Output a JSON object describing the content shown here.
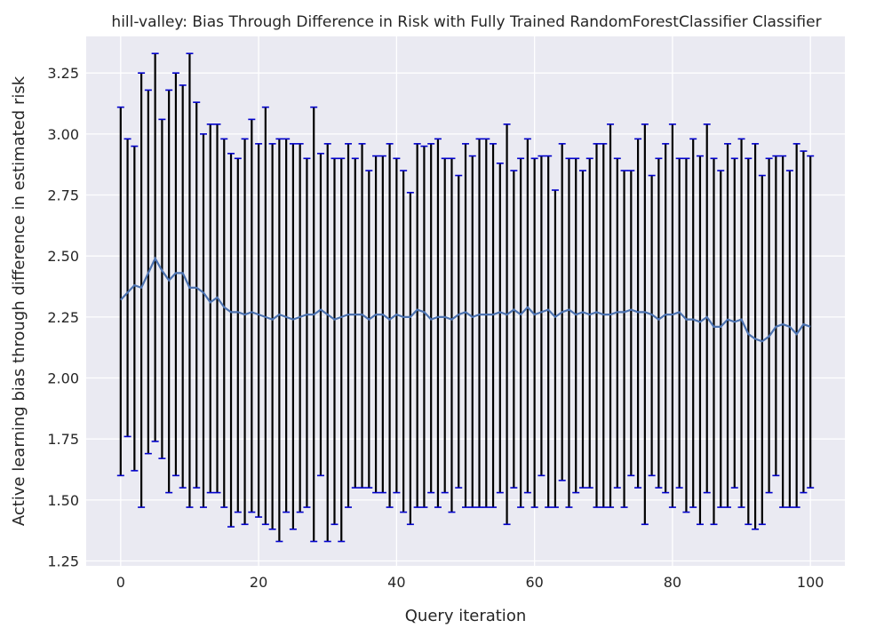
{
  "chart_data": {
    "type": "line",
    "title": "hill-valley: Bias Through Difference in Risk with Fully Trained RandomForestClassifier Classifier",
    "xlabel": "Query iteration",
    "ylabel": "Active learning bias through difference in estimated risk",
    "xlim": [
      -5,
      105
    ],
    "ylim": [
      1.23,
      3.4
    ],
    "xticks": [
      0,
      20,
      40,
      60,
      80,
      100
    ],
    "yticks": [
      1.25,
      1.5,
      1.75,
      2.0,
      2.25,
      2.5,
      2.75,
      3.0,
      3.25
    ],
    "xtick_labels": [
      "0",
      "20",
      "40",
      "60",
      "80",
      "100"
    ],
    "ytick_labels": [
      "1.25",
      "1.50",
      "1.75",
      "2.00",
      "2.25",
      "2.50",
      "2.75",
      "3.00",
      "3.25"
    ],
    "grid": true,
    "colors": {
      "background": "#eaeaf2",
      "grid": "#ffffff",
      "mean_line": "#4c72b0",
      "error_bar": "#000000",
      "cap": "#0000cc"
    },
    "series": [
      {
        "x": [
          0,
          1,
          2,
          3,
          4,
          5,
          6,
          7,
          8,
          9,
          10,
          11,
          12,
          13,
          14,
          15,
          16,
          17,
          18,
          19,
          20,
          21,
          22,
          23,
          24,
          25,
          26,
          27,
          28,
          29,
          30,
          31,
          32,
          33,
          34,
          35,
          36,
          37,
          38,
          39,
          40,
          41,
          42,
          43,
          44,
          45,
          46,
          47,
          48,
          49,
          50,
          51,
          52,
          53,
          54,
          55,
          56,
          57,
          58,
          59,
          60,
          61,
          62,
          63,
          64,
          65,
          66,
          67,
          68,
          69,
          70,
          71,
          72,
          73,
          74,
          75,
          76,
          77,
          78,
          79,
          80,
          81,
          82,
          83,
          84,
          85,
          86,
          87,
          88,
          89,
          90,
          91,
          92,
          93,
          94,
          95,
          96,
          97,
          98,
          99,
          100
        ],
        "mean": [
          2.32,
          2.35,
          2.38,
          2.37,
          2.43,
          2.49,
          2.44,
          2.4,
          2.43,
          2.43,
          2.37,
          2.37,
          2.35,
          2.31,
          2.33,
          2.29,
          2.27,
          2.27,
          2.26,
          2.27,
          2.26,
          2.25,
          2.24,
          2.26,
          2.25,
          2.24,
          2.25,
          2.26,
          2.26,
          2.28,
          2.26,
          2.24,
          2.25,
          2.26,
          2.26,
          2.26,
          2.24,
          2.26,
          2.26,
          2.24,
          2.26,
          2.25,
          2.25,
          2.28,
          2.27,
          2.24,
          2.25,
          2.25,
          2.24,
          2.26,
          2.27,
          2.25,
          2.26,
          2.26,
          2.26,
          2.27,
          2.26,
          2.28,
          2.26,
          2.29,
          2.26,
          2.27,
          2.28,
          2.25,
          2.27,
          2.28,
          2.26,
          2.27,
          2.26,
          2.27,
          2.26,
          2.26,
          2.27,
          2.27,
          2.28,
          2.27,
          2.27,
          2.26,
          2.24,
          2.26,
          2.26,
          2.27,
          2.24,
          2.24,
          2.23,
          2.25,
          2.21,
          2.21,
          2.24,
          2.23,
          2.24,
          2.18,
          2.16,
          2.15,
          2.17,
          2.21,
          2.22,
          2.21,
          2.18,
          2.22,
          2.21
        ],
        "upper": [
          3.11,
          2.98,
          2.95,
          3.25,
          3.18,
          3.33,
          3.06,
          3.18,
          3.25,
          3.2,
          3.33,
          3.13,
          3.0,
          3.04,
          3.04,
          2.98,
          2.92,
          2.9,
          2.98,
          3.06,
          2.96,
          3.11,
          2.96,
          2.98,
          2.98,
          2.96,
          2.96,
          2.9,
          3.11,
          2.92,
          2.96,
          2.9,
          2.9,
          2.96,
          2.9,
          2.96,
          2.85,
          2.91,
          2.91,
          2.96,
          2.9,
          2.85,
          2.76,
          2.96,
          2.95,
          2.96,
          2.98,
          2.9,
          2.9,
          2.83,
          2.96,
          2.91,
          2.98,
          2.98,
          2.96,
          2.88,
          3.04,
          2.85,
          2.9,
          2.98,
          2.9,
          2.91,
          2.91,
          2.77,
          2.96,
          2.9,
          2.9,
          2.85,
          2.9,
          2.96,
          2.96,
          3.04,
          2.9,
          2.85,
          2.85,
          2.98,
          3.04,
          2.83,
          2.9,
          2.96,
          3.04,
          2.9,
          2.9,
          2.98,
          2.91,
          3.04,
          2.9,
          2.85,
          2.96,
          2.9,
          2.98,
          2.9,
          2.96,
          2.83,
          2.9,
          2.91,
          2.91,
          2.85,
          2.96,
          2.93,
          2.91
        ],
        "lower": [
          1.6,
          1.76,
          1.62,
          1.47,
          1.69,
          1.74,
          1.67,
          1.53,
          1.6,
          1.55,
          1.47,
          1.55,
          1.47,
          1.53,
          1.53,
          1.47,
          1.39,
          1.45,
          1.4,
          1.45,
          1.43,
          1.4,
          1.38,
          1.33,
          1.45,
          1.38,
          1.45,
          1.47,
          1.33,
          1.6,
          1.33,
          1.4,
          1.33,
          1.47,
          1.55,
          1.55,
          1.55,
          1.53,
          1.53,
          1.47,
          1.53,
          1.45,
          1.4,
          1.47,
          1.47,
          1.53,
          1.47,
          1.53,
          1.45,
          1.55,
          1.47,
          1.47,
          1.47,
          1.47,
          1.47,
          1.53,
          1.4,
          1.55,
          1.47,
          1.53,
          1.47,
          1.6,
          1.47,
          1.47,
          1.58,
          1.47,
          1.53,
          1.55,
          1.55,
          1.47,
          1.47,
          1.47,
          1.55,
          1.47,
          1.6,
          1.55,
          1.4,
          1.6,
          1.55,
          1.53,
          1.47,
          1.55,
          1.45,
          1.47,
          1.4,
          1.53,
          1.4,
          1.47,
          1.47,
          1.55,
          1.47,
          1.4,
          1.38,
          1.4,
          1.53,
          1.6,
          1.47,
          1.47,
          1.47,
          1.53,
          1.55
        ]
      }
    ]
  }
}
